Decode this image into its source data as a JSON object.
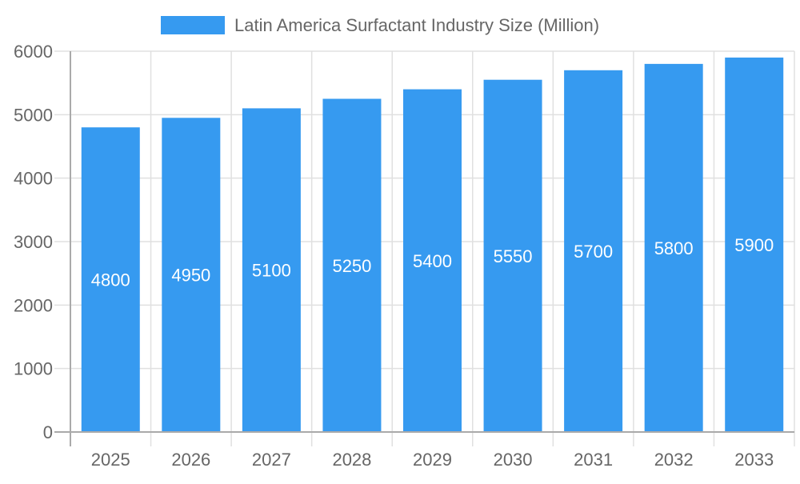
{
  "chart_data": {
    "type": "bar",
    "title": "",
    "xlabel": "",
    "ylabel": "",
    "categories": [
      "2025",
      "2026",
      "2027",
      "2028",
      "2029",
      "2030",
      "2031",
      "2032",
      "2033"
    ],
    "series": [
      {
        "name": "Latin America Surfactant Industry Size (Million)",
        "values": [
          4800,
          4950,
          5100,
          5250,
          5400,
          5550,
          5700,
          5800,
          5900
        ],
        "color": "#369af0"
      }
    ],
    "ylim": [
      0,
      6000
    ],
    "yticks": [
      0,
      1000,
      2000,
      3000,
      4000,
      5000,
      6000
    ],
    "grid": true,
    "legend": "top-center",
    "data_labels": true
  }
}
